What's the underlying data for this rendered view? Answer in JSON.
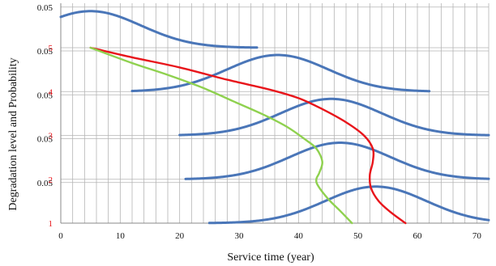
{
  "chart_data": {
    "type": "line",
    "title": "",
    "xlabel": "Service time (year)",
    "ylabel": "Degradation level and Probability",
    "xlim": [
      0,
      72
    ],
    "x_ticks": [
      0,
      10,
      20,
      30,
      40,
      50,
      60,
      70
    ],
    "grid": "vertical lines every 2 years, horizontal lines at each degradation level and each 0.05 probability",
    "levels": [
      1,
      2,
      3,
      4,
      5
    ],
    "probability_tick_label": "0.05",
    "probability_band_max": 0.05,
    "colors": {
      "level_ticks": "#e8151b",
      "grid": "#b4b4b4",
      "distributions": "#4a76b8",
      "red_curve": "#e8151b",
      "green_curve": "#8fd14f"
    },
    "series": [
      {
        "color": "#e8151b",
        "x": [
          5,
          12,
          20,
          28,
          35,
          40,
          44,
          48,
          51,
          52.5,
          52.5,
          52,
          52.2,
          53.5,
          55.5,
          58
        ],
        "y": [
          5,
          4.78,
          4.55,
          4.27,
          4.05,
          3.85,
          3.6,
          3.3,
          3.0,
          2.7,
          2.4,
          2.1,
          1.8,
          1.5,
          1.25,
          1
        ]
      },
      {
        "color": "#8fd14f",
        "x": [
          5,
          12,
          18,
          24,
          29,
          34,
          38,
          41,
          43,
          44,
          43.5,
          43,
          43.3,
          45,
          47,
          49
        ],
        "y": [
          5,
          4.65,
          4.38,
          4.08,
          3.78,
          3.48,
          3.2,
          2.92,
          2.7,
          2.4,
          2.15,
          2.0,
          1.85,
          1.55,
          1.28,
          1
        ]
      }
    ],
    "distributions": [
      {
        "base_level": 5,
        "mean": 5,
        "sd": 8.5,
        "x_range": [
          0,
          33
        ],
        "peak": 0.045
      },
      {
        "base_level": 4,
        "mean": 36.5,
        "sd": 8.5,
        "x_range": [
          12,
          62
        ],
        "peak": 0.045
      },
      {
        "base_level": 3,
        "mean": 45.5,
        "sd": 8.5,
        "x_range": [
          20,
          72
        ],
        "peak": 0.045
      },
      {
        "base_level": 2,
        "mean": 47,
        "sd": 8.5,
        "x_range": [
          21,
          72
        ],
        "peak": 0.045
      },
      {
        "base_level": 1,
        "mean": 53,
        "sd": 8.5,
        "x_range": [
          25,
          72
        ],
        "peak": 0.045
      }
    ]
  }
}
